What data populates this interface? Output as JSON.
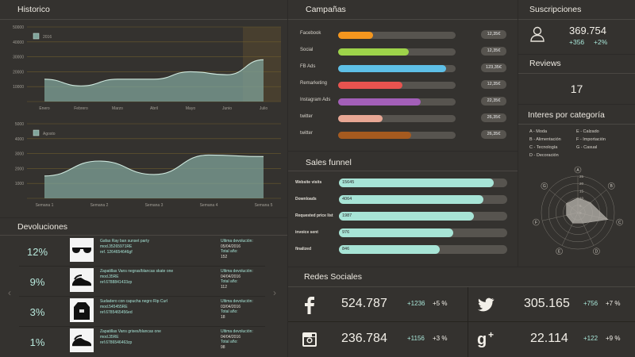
{
  "historico": {
    "title": "Historico",
    "chart1": {
      "legend": "2016",
      "y_ticks": [
        "50000",
        "40000",
        "30000",
        "20000",
        "10000"
      ],
      "x_labels": [
        "Enero",
        "Febrero",
        "Marzo",
        "Abril",
        "Mayo",
        "Junio",
        "Julio"
      ]
    },
    "chart2": {
      "legend": "Agosto",
      "y_ticks": [
        "5000",
        "4000",
        "3000",
        "2000",
        "1000"
      ],
      "x_labels": [
        "Semana 1",
        "Semana 2",
        "Semana 3",
        "Semana 4",
        "Semana 5"
      ]
    }
  },
  "chart_data": [
    {
      "type": "area",
      "title": "",
      "x": [
        "Enero",
        "Febrero",
        "Marzo",
        "Abril",
        "Mayo",
        "Junio",
        "Julio"
      ],
      "series": [
        {
          "name": "2016",
          "values": [
            15000,
            10500,
            15000,
            15000,
            20000,
            18000,
            28000
          ]
        }
      ],
      "ylim": [
        0,
        50000
      ],
      "grid": true,
      "legend": "top-left"
    },
    {
      "type": "area",
      "title": "",
      "x": [
        "Semana 1",
        "Semana 2",
        "Semana 3",
        "Semana 4",
        "Semana 5"
      ],
      "series": [
        {
          "name": "Agosto",
          "values": [
            1500,
            2500,
            1600,
            2900,
            2800
          ]
        }
      ],
      "ylim": [
        0,
        5000
      ],
      "grid": true,
      "legend": "top-left"
    }
  ],
  "campanas": {
    "title": "Campañas",
    "items": [
      {
        "label": "Facebook",
        "value": "12,35€",
        "pct": 0.3,
        "color": "#f4961e"
      },
      {
        "label": "Social",
        "value": "12,35€",
        "pct": 0.6,
        "color": "#9ed34a"
      },
      {
        "label": "FB Ads",
        "value": "123,35€",
        "pct": 0.92,
        "color": "#5ebfe6"
      },
      {
        "label": "Remarketing",
        "value": "12,35€",
        "pct": 0.55,
        "color": "#e8534f"
      },
      {
        "label": "Instagram Ads",
        "value": "22,35€",
        "pct": 0.7,
        "color": "#a35fb8"
      },
      {
        "label": "twitter",
        "value": "26,35€",
        "pct": 0.38,
        "color": "#e8a794"
      },
      {
        "label": "twitter",
        "value": "26,35€",
        "pct": 0.62,
        "color": "#a55a1f"
      }
    ]
  },
  "funnel": {
    "title": "Sales funnel",
    "items": [
      {
        "label": "Website visits",
        "value": "15645",
        "pct": 0.92
      },
      {
        "label": "Downloads",
        "value": "4064",
        "pct": 0.86
      },
      {
        "label": "Requested price list",
        "value": "1987",
        "pct": 0.8
      },
      {
        "label": "invoice sent",
        "value": "976",
        "pct": 0.68
      },
      {
        "label": "finalized",
        "value": "846",
        "pct": 0.6
      }
    ]
  },
  "suscripciones": {
    "title": "Suscripciones",
    "value": "369.754",
    "delta": "+356",
    "pct": "+2%"
  },
  "reviews": {
    "title": "Reviews",
    "value": "17"
  },
  "interes": {
    "title": "Interes por categoría",
    "items": [
      "A - Moda",
      "E - Calzado",
      "B - Alimentación",
      "F - Importación",
      "C - Tecnología",
      "G - Casual",
      "D - Decoración"
    ],
    "radar_ticks": [
      "25",
      "20",
      "15",
      "10",
      "5",
      "0"
    ],
    "axes": [
      "A",
      "B",
      "C",
      "D",
      "E",
      "F",
      "G"
    ],
    "values": [
      10,
      11,
      21,
      8,
      8,
      8,
      10
    ],
    "vmax": 25
  },
  "devoluciones": {
    "title": "Devoluciones",
    "items": [
      {
        "pct": "12%",
        "desc1": "Gafas Ray ban sunset party",
        "desc2": "mod.35265971RE",
        "desc3": "ref. 1264654646gf",
        "ret_label": "Ultima devolución:",
        "ret_date": "05/04/2016",
        "total_label": "Total año:",
        "total": "152"
      },
      {
        "pct": "9%",
        "desc1": "Zapatillas Vans negras/blancas skate one",
        "desc2": "mod.35RE",
        "desc3": "ref.6788841433zp",
        "ret_label": "Ultima devolución:",
        "ret_date": "04/04/2016",
        "total_label": "Total año:",
        "total": "112"
      },
      {
        "pct": "3%",
        "desc1": "Sudadero con capucha negro Rip Curl",
        "desc2": "mod.545455RE",
        "desc3": "ref.6785465456ed",
        "ret_label": "Ultima devolución:",
        "ret_date": "03/04/2016",
        "total_label": "Total año:",
        "total": "18"
      },
      {
        "pct": "1%",
        "desc1": "Zapatillas Vans grises/blancas one",
        "desc2": "mod.35RE",
        "desc3": "ref.6786546463zp",
        "ret_label": "Ultima devolución:",
        "ret_date": "04/04/2016",
        "total_label": "Total año:",
        "total": "98"
      }
    ]
  },
  "redes": {
    "title": "Redes Sociales",
    "facebook": {
      "icon": "facebook-icon",
      "value": "524.787",
      "delta": "+1236",
      "pct": "+5 %"
    },
    "twitter": {
      "icon": "twitter-icon",
      "value": "305.165",
      "delta": "+756",
      "pct": "+7 %"
    },
    "instagram": {
      "icon": "instagram-icon",
      "value": "236.784",
      "delta": "+1156",
      "pct": "+3 %"
    },
    "googleplus": {
      "icon": "google-plus-icon",
      "value": "22.114",
      "delta": "+122",
      "pct": "+9 %"
    }
  },
  "colors": {
    "accent": "#a7e4d6",
    "area_fill": "#7fa39a",
    "highlight": "#5a4a30"
  }
}
